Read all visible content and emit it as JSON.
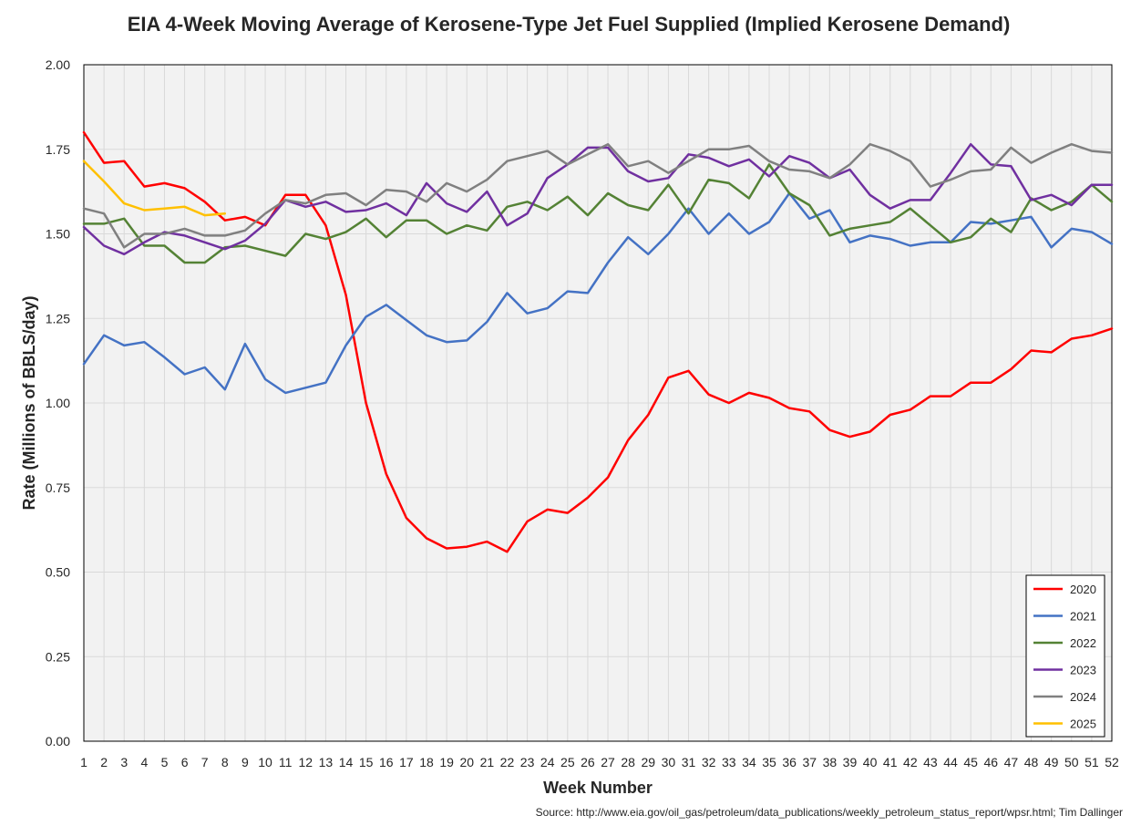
{
  "chart_data": {
    "type": "line",
    "title": "EIA 4-Week Moving Average of Kerosene-Type Jet Fuel Supplied (Implied Kerosene Demand)",
    "xlabel": "Week Number",
    "ylabel": "Rate (Millions of BBLS/day)",
    "xlim": [
      1,
      52
    ],
    "ylim": [
      0,
      2.0
    ],
    "y_ticks": [
      "0.00",
      "0.25",
      "0.50",
      "0.75",
      "1.00",
      "1.25",
      "1.50",
      "1.75",
      "2.00"
    ],
    "x_ticks": [
      "1",
      "2",
      "3",
      "4",
      "5",
      "6",
      "7",
      "8",
      "9",
      "10",
      "11",
      "12",
      "13",
      "14",
      "15",
      "16",
      "17",
      "18",
      "19",
      "20",
      "21",
      "22",
      "23",
      "24",
      "25",
      "26",
      "27",
      "28",
      "29",
      "30",
      "31",
      "32",
      "33",
      "34",
      "35",
      "36",
      "37",
      "38",
      "39",
      "40",
      "41",
      "42",
      "43",
      "44",
      "45",
      "46",
      "47",
      "48",
      "49",
      "50",
      "51",
      "52"
    ],
    "grid": true,
    "legend_position": "bottom-right",
    "series": [
      {
        "name": "2020",
        "color": "#ff0000",
        "values": [
          1.8,
          1.71,
          1.715,
          1.64,
          1.65,
          1.635,
          1.595,
          1.54,
          1.55,
          1.525,
          1.615,
          1.615,
          1.525,
          1.32,
          1.0,
          0.79,
          0.66,
          0.6,
          0.57,
          0.575,
          0.59,
          0.56,
          0.65,
          0.685,
          0.675,
          0.72,
          0.78,
          0.89,
          0.965,
          1.075,
          1.095,
          1.025,
          1.0,
          1.03,
          1.015,
          0.985,
          0.975,
          0.92,
          0.9,
          0.915,
          0.965,
          0.98,
          1.02,
          1.02,
          1.06,
          1.06,
          1.1,
          1.155,
          1.15,
          1.19,
          1.2,
          1.22
        ]
      },
      {
        "name": "2021",
        "color": "#4472c4",
        "values": [
          1.115,
          1.2,
          1.17,
          1.18,
          1.135,
          1.085,
          1.105,
          1.04,
          1.175,
          1.07,
          1.03,
          1.045,
          1.06,
          1.17,
          1.255,
          1.29,
          1.245,
          1.2,
          1.18,
          1.185,
          1.24,
          1.325,
          1.265,
          1.28,
          1.33,
          1.325,
          1.415,
          1.49,
          1.44,
          1.5,
          1.575,
          1.5,
          1.56,
          1.5,
          1.535,
          1.62,
          1.545,
          1.57,
          1.475,
          1.495,
          1.485,
          1.465,
          1.475,
          1.475,
          1.535,
          1.53,
          1.54,
          1.55,
          1.46,
          1.515,
          1.505,
          1.47
        ]
      },
      {
        "name": "2022",
        "color": "#548235",
        "values": [
          1.53,
          1.53,
          1.545,
          1.465,
          1.465,
          1.415,
          1.415,
          1.46,
          1.465,
          1.45,
          1.435,
          1.5,
          1.485,
          1.505,
          1.545,
          1.49,
          1.54,
          1.54,
          1.5,
          1.525,
          1.51,
          1.58,
          1.595,
          1.57,
          1.61,
          1.555,
          1.62,
          1.585,
          1.57,
          1.645,
          1.56,
          1.66,
          1.65,
          1.605,
          1.705,
          1.62,
          1.585,
          1.495,
          1.515,
          1.525,
          1.535,
          1.575,
          1.525,
          1.475,
          1.49,
          1.545,
          1.505,
          1.605,
          1.57,
          1.595,
          1.645,
          1.595
        ]
      },
      {
        "name": "2023",
        "color": "#7030a0",
        "values": [
          1.52,
          1.465,
          1.44,
          1.475,
          1.505,
          1.495,
          1.475,
          1.455,
          1.48,
          1.53,
          1.6,
          1.58,
          1.595,
          1.565,
          1.57,
          1.59,
          1.555,
          1.65,
          1.59,
          1.565,
          1.625,
          1.525,
          1.56,
          1.665,
          1.705,
          1.755,
          1.755,
          1.685,
          1.655,
          1.665,
          1.735,
          1.725,
          1.7,
          1.72,
          1.67,
          1.73,
          1.71,
          1.665,
          1.69,
          1.615,
          1.575,
          1.6,
          1.6,
          1.68,
          1.765,
          1.705,
          1.7,
          1.6,
          1.615,
          1.585,
          1.645,
          1.645
        ]
      },
      {
        "name": "2024",
        "color": "#808080",
        "values": [
          1.575,
          1.56,
          1.46,
          1.5,
          1.5,
          1.515,
          1.495,
          1.495,
          1.51,
          1.56,
          1.6,
          1.59,
          1.615,
          1.62,
          1.585,
          1.63,
          1.625,
          1.595,
          1.65,
          1.625,
          1.66,
          1.715,
          1.73,
          1.745,
          1.705,
          1.735,
          1.765,
          1.7,
          1.715,
          1.68,
          1.715,
          1.75,
          1.75,
          1.76,
          1.715,
          1.69,
          1.685,
          1.665,
          1.705,
          1.765,
          1.745,
          1.715,
          1.64,
          1.66,
          1.685,
          1.69,
          1.755,
          1.71,
          1.74,
          1.765,
          1.745,
          1.74
        ]
      },
      {
        "name": "2025",
        "color": "#ffc000",
        "values": [
          1.715,
          1.655,
          1.59,
          1.57,
          1.575,
          1.58,
          1.555,
          1.56
        ]
      }
    ],
    "source": "Source: http://www.eia.gov/oil_gas/petroleum/data_publications/weekly_petroleum_status_report/wpsr.html; Tim Dallinger"
  }
}
